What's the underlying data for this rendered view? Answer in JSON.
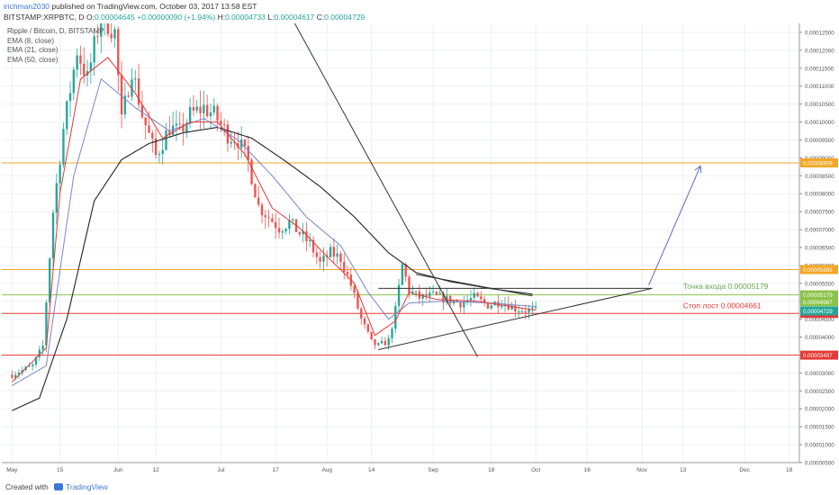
{
  "header": {
    "user": "irichman2030",
    "publish_rest": " published on TradingView.com, October 03, 2017 13:58 EST",
    "symbol": "BITSTAMP:XRPBTC, D",
    "o_label": "O:",
    "o_value": "0.00004645",
    "change": "+0.00000090 (+1.94%)",
    "h_label": "H:",
    "h_value": "0.00004733",
    "l_label": "L:",
    "l_value": "0.00004617",
    "c_label": "C:",
    "c_value": "0.00004729"
  },
  "legend": {
    "title": "Ripple / Bitcoin, D, BITSTAMP",
    "ema8": "EMA (8, close)",
    "ema21": "EMA (21, close)",
    "ema50": "EMA (50, close)"
  },
  "footer": {
    "created_with": "Created with",
    "brand": "TradingView"
  },
  "colors": {
    "up": "#26a69a",
    "down": "#ef5350",
    "ema8": "#e53935",
    "ema21": "#7986cb",
    "ema50": "#222222",
    "orange": "#f5a623",
    "green_line": "#8bc34a",
    "red_line": "#e53935",
    "arrow": "#5c6bc0",
    "grid": "#eef0f4"
  },
  "chart_data": {
    "type": "candlestick",
    "ylim": [
      5e-06,
      0.0001275
    ],
    "y_ticks": [
      "0.00012500",
      "0.00012000",
      "0.00011500",
      "0.00011000",
      "0.00010500",
      "0.00010000",
      "0.00009500",
      "0.00009000",
      "0.00008500",
      "0.00008000",
      "0.00007500",
      "0.00007000",
      "0.00006500",
      "0.00006000",
      "0.00005500",
      "0.00005000",
      "0.00004500",
      "0.00004000",
      "0.00003500",
      "0.00003000",
      "0.00002500",
      "0.00002000",
      "0.00001500",
      "0.00001000",
      "0.00000500"
    ],
    "x_tick_labels": [
      {
        "day": 0,
        "label": "May"
      },
      {
        "day": 14,
        "label": "15"
      },
      {
        "day": 31,
        "label": "Jun"
      },
      {
        "day": 42,
        "label": "12"
      },
      {
        "day": 61,
        "label": "Jul"
      },
      {
        "day": 77,
        "label": "17"
      },
      {
        "day": 92,
        "label": "Aug"
      },
      {
        "day": 105,
        "label": "14"
      },
      {
        "day": 123,
        "label": "Sep"
      },
      {
        "day": 140,
        "label": "18"
      },
      {
        "day": 153,
        "label": "Oct"
      },
      {
        "day": 168,
        "label": "16"
      },
      {
        "day": 184,
        "label": "Nov"
      },
      {
        "day": 196,
        "label": "13"
      },
      {
        "day": 214,
        "label": "Dec"
      },
      {
        "day": 227,
        "label": "18"
      }
    ],
    "xlim": [
      -3,
      230
    ],
    "horizontal_levels": [
      {
        "value": 8.859e-05,
        "label": "0.00008859",
        "color": "#f5a623"
      },
      {
        "value": 5.885e-05,
        "label": "0.00005885",
        "color": "#f5a623"
      },
      {
        "value": 5.179e-05,
        "label": "0.00005179",
        "color": "#8bc34a"
      },
      {
        "value": 4.661e-05,
        "label": "0.00004661",
        "color": "#e53935"
      },
      {
        "value": 3.497e-05,
        "label": "0.00003497",
        "color": "#e53935"
      }
    ],
    "price_badges": [
      {
        "value": 4.987e-05,
        "label": "0.00004987",
        "color": "#8bc34a"
      },
      {
        "value": 4.729e-05,
        "label": "0.00004729",
        "color": "#26a69a"
      }
    ],
    "annotations": [
      {
        "text": "Точка входа 0.00005179",
        "day": 196,
        "value": 5.35e-05,
        "color": "#6aa84f"
      },
      {
        "text": "Стоп лост 0.00004661",
        "day": 196,
        "value": 4.8e-05,
        "color": "#e53935"
      }
    ],
    "trendlines": [
      {
        "from": [
          80,
          0.000132
        ],
        "to": [
          136,
          3.45e-05
        ],
        "color": "#333"
      },
      {
        "from": [
          107,
          3.65e-05
        ],
        "to": [
          187,
          5.36e-05
        ],
        "color": "#333"
      },
      {
        "from": [
          107,
          5.36e-05
        ],
        "to": [
          187,
          5.36e-05
        ],
        "color": "#333"
      },
      {
        "from": [
          118,
          5.75e-05
        ],
        "to": [
          152,
          5.15e-05
        ],
        "color": "#333"
      },
      {
        "from": [
          186,
          5.45e-05
        ],
        "to": [
          201,
          8.75e-05
        ],
        "color": "#5c6bc0",
        "arrow": true
      }
    ],
    "key_closes": [
      [
        0,
        2.95e-05
      ],
      [
        6,
        3.2e-05
      ],
      [
        9,
        3.75e-05
      ],
      [
        12,
        7.5e-05
      ],
      [
        15,
        9.8e-05
      ],
      [
        19,
        0.00012
      ],
      [
        22,
        0.000112
      ],
      [
        26,
        0.00013
      ],
      [
        30,
        0.000125
      ],
      [
        32,
        0.0001
      ],
      [
        35,
        0.000115
      ],
      [
        38,
        0.000102
      ],
      [
        42,
        9.05e-05
      ],
      [
        46,
        9.85e-05
      ],
      [
        49,
        9.7e-05
      ],
      [
        52,
        0.000102
      ],
      [
        56,
        0.000104
      ],
      [
        59,
        0.000102
      ],
      [
        63,
        9.65e-05
      ],
      [
        66,
        9.5e-05
      ],
      [
        69,
        8.9e-05
      ],
      [
        72,
        7.65e-05
      ],
      [
        75,
        7.35e-05
      ],
      [
        78,
        7.05e-05
      ],
      [
        81,
        7.2e-05
      ],
      [
        84,
        6.9e-05
      ],
      [
        87,
        6.6e-05
      ],
      [
        90,
        6.05e-05
      ],
      [
        93,
        6.35e-05
      ],
      [
        96,
        6.2e-05
      ],
      [
        99,
        5.45e-05
      ],
      [
        102,
        4.5e-05
      ],
      [
        105,
        3.85e-05
      ],
      [
        107,
        3.75e-05
      ],
      [
        110,
        3.9e-05
      ],
      [
        112,
        4.75e-05
      ],
      [
        114,
        6e-05
      ],
      [
        116,
        5.3e-05
      ],
      [
        119,
        5.1e-05
      ],
      [
        123,
        5.15e-05
      ],
      [
        127,
        5.05e-05
      ],
      [
        131,
        4.95e-05
      ],
      [
        135,
        5.1e-05
      ],
      [
        139,
        4.9e-05
      ],
      [
        143,
        5e-05
      ],
      [
        147,
        4.8e-05
      ],
      [
        150,
        4.75e-05
      ],
      [
        153,
        4.73e-05
      ]
    ],
    "ema8_key": [
      [
        0,
        2.75e-05
      ],
      [
        10,
        3.7e-05
      ],
      [
        14,
        8e-05
      ],
      [
        20,
        0.000112
      ],
      [
        28,
        0.000118
      ],
      [
        36,
        0.000108
      ],
      [
        44,
        9.55e-05
      ],
      [
        52,
        0.0001
      ],
      [
        60,
        0.0001
      ],
      [
        68,
        9.1e-05
      ],
      [
        76,
        7.6e-05
      ],
      [
        84,
        7.05e-05
      ],
      [
        92,
        6.25e-05
      ],
      [
        100,
        5.5e-05
      ],
      [
        106,
        4.05e-05
      ],
      [
        112,
        4.45e-05
      ],
      [
        116,
        5.25e-05
      ],
      [
        124,
        5.05e-05
      ],
      [
        136,
        5e-05
      ],
      [
        146,
        4.85e-05
      ],
      [
        153,
        4.75e-05
      ]
    ],
    "ema21_key": [
      [
        0,
        2.65e-05
      ],
      [
        10,
        3.2e-05
      ],
      [
        18,
        8.5e-05
      ],
      [
        26,
        0.000112
      ],
      [
        36,
        0.000104
      ],
      [
        46,
        9.75e-05
      ],
      [
        56,
        0.000101
      ],
      [
        66,
        9.5e-05
      ],
      [
        76,
        8.5e-05
      ],
      [
        86,
        7.35e-05
      ],
      [
        96,
        6.55e-05
      ],
      [
        104,
        5.25e-05
      ],
      [
        110,
        4.5e-05
      ],
      [
        116,
        4.95e-05
      ],
      [
        126,
        5e-05
      ],
      [
        140,
        4.95e-05
      ],
      [
        153,
        4.85e-05
      ]
    ],
    "ema50_key": [
      [
        0,
        1.95e-05
      ],
      [
        8,
        2.3e-05
      ],
      [
        16,
        4.5e-05
      ],
      [
        24,
        7.8e-05
      ],
      [
        32,
        8.95e-05
      ],
      [
        40,
        9.4e-05
      ],
      [
        50,
        9.7e-05
      ],
      [
        60,
        9.85e-05
      ],
      [
        70,
        9.55e-05
      ],
      [
        80,
        8.9e-05
      ],
      [
        90,
        8.2e-05
      ],
      [
        100,
        7.35e-05
      ],
      [
        110,
        6.35e-05
      ],
      [
        118,
        5.8e-05
      ],
      [
        128,
        5.55e-05
      ],
      [
        140,
        5.35e-05
      ],
      [
        152,
        5.2e-05
      ]
    ]
  }
}
